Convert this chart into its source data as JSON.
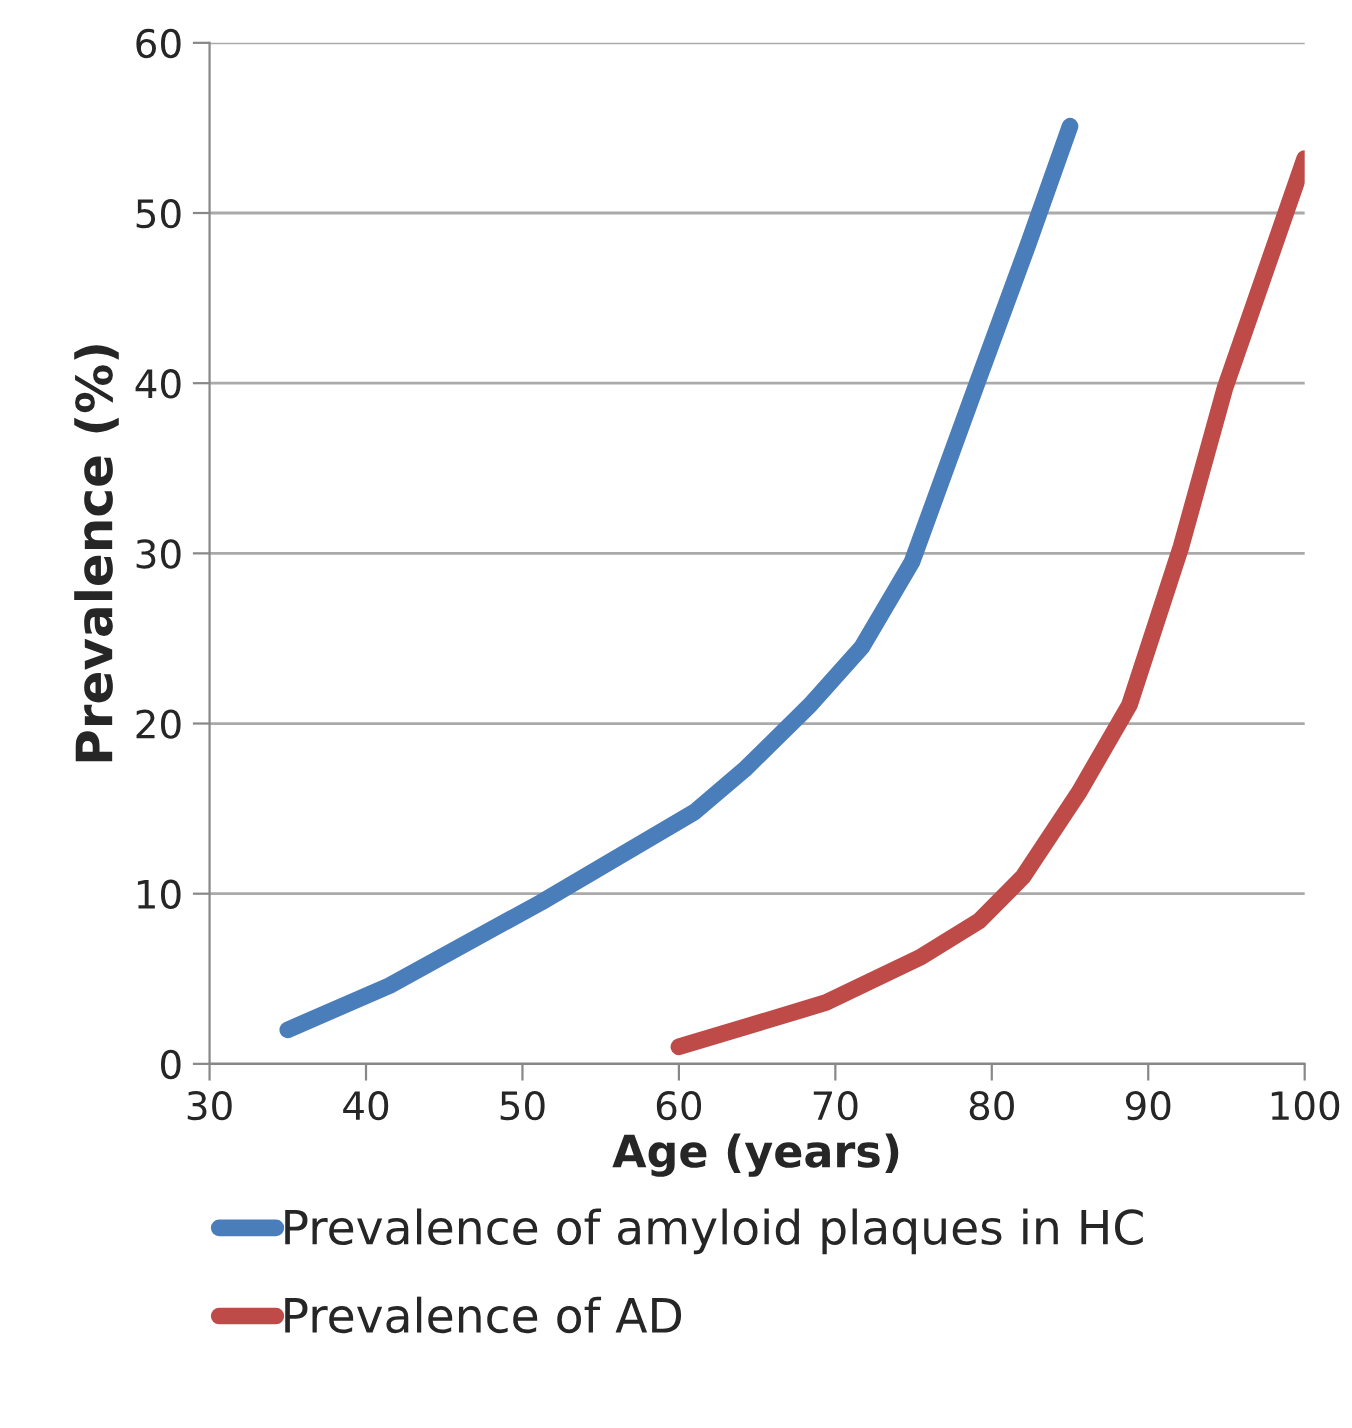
{
  "chart_data": {
    "type": "line",
    "xlabel": "Age (years)",
    "ylabel": "Prevalence (%)",
    "series": [
      {
        "name": "Prevalence of amyloid plaques in HC",
        "color": "#4a7ebb",
        "x": [
          35,
          41.5,
          51.2,
          61,
          64.2,
          68.4,
          71.7,
          74.9,
          79.1,
          82.3,
          85
        ],
        "values": [
          2,
          4.6,
          9.5,
          14.8,
          17.3,
          21.1,
          24.5,
          29.5,
          40.1,
          48.1,
          55.1
        ]
      },
      {
        "name": "Prevalence of AD",
        "color": "#be4b48",
        "x": [
          60,
          69.4,
          75.5,
          79.2,
          82,
          85.6,
          88.8,
          92.1,
          94.9,
          100
        ],
        "values": [
          1,
          3.6,
          6.3,
          8.4,
          11,
          16,
          21.1,
          30.4,
          39.7,
          53.2
        ]
      }
    ],
    "xlim": [
      30,
      100
    ],
    "xticks": [
      30,
      40,
      50,
      60,
      70,
      80,
      90,
      100
    ],
    "ylim": [
      0,
      60
    ],
    "yticks": [
      0,
      10,
      20,
      30,
      40,
      50,
      60
    ],
    "grid": "y",
    "legend": "bottom",
    "marker": "none",
    "line_style": "solid"
  }
}
